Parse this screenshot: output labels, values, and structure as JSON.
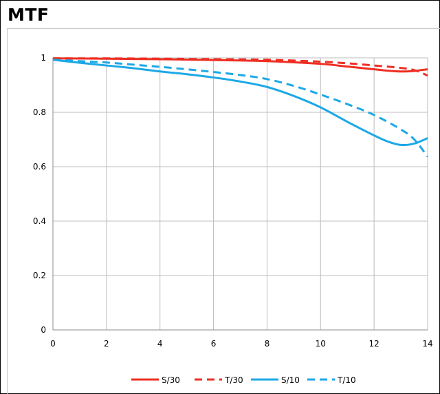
{
  "chart_data": {
    "type": "line",
    "title": "MTF",
    "xlabel": "",
    "ylabel": "",
    "xlim": [
      0,
      14
    ],
    "ylim": [
      0,
      1
    ],
    "x_ticks": [
      0,
      2,
      4,
      6,
      8,
      10,
      12,
      14
    ],
    "y_ticks": [
      0,
      0.2,
      0.4,
      0.6,
      0.8,
      1
    ],
    "y_tick_labels": [
      "0",
      "0.2",
      "0.4",
      "0.6",
      "0.8",
      "1"
    ],
    "grid": true,
    "legend_position": "bottom",
    "series": [
      {
        "name": "S/30",
        "color": "#ee2e22",
        "dash": "solid",
        "x": [
          0,
          2,
          4,
          6,
          8,
          10,
          11,
          12,
          12.5,
          13,
          13.5,
          14
        ],
        "y": [
          0.998,
          0.997,
          0.995,
          0.992,
          0.988,
          0.978,
          0.968,
          0.958,
          0.953,
          0.95,
          0.952,
          0.958
        ]
      },
      {
        "name": "T/30",
        "color": "#ee2e22",
        "dash": "dashed",
        "x": [
          0,
          2,
          4,
          6,
          8,
          10,
          11,
          12,
          13,
          13.5,
          14
        ],
        "y": [
          0.998,
          0.998,
          0.997,
          0.995,
          0.993,
          0.986,
          0.98,
          0.972,
          0.963,
          0.955,
          0.935
        ]
      },
      {
        "name": "S/10",
        "color": "#1ca8e6",
        "dash": "solid",
        "x": [
          0,
          1,
          2,
          3,
          4,
          5,
          6,
          7,
          8,
          9,
          10,
          11,
          12,
          12.5,
          13,
          13.5,
          14
        ],
        "y": [
          0.993,
          0.982,
          0.972,
          0.962,
          0.95,
          0.94,
          0.928,
          0.913,
          0.893,
          0.86,
          0.818,
          0.765,
          0.715,
          0.693,
          0.68,
          0.685,
          0.705
        ]
      },
      {
        "name": "T/10",
        "color": "#1ca8e6",
        "dash": "dashed",
        "x": [
          0,
          1,
          2,
          3,
          4,
          5,
          6,
          7,
          8,
          9,
          10,
          11,
          12,
          13,
          13.5,
          14
        ],
        "y": [
          0.993,
          0.988,
          0.983,
          0.975,
          0.967,
          0.958,
          0.948,
          0.937,
          0.922,
          0.897,
          0.865,
          0.83,
          0.79,
          0.737,
          0.7,
          0.637
        ]
      }
    ]
  }
}
